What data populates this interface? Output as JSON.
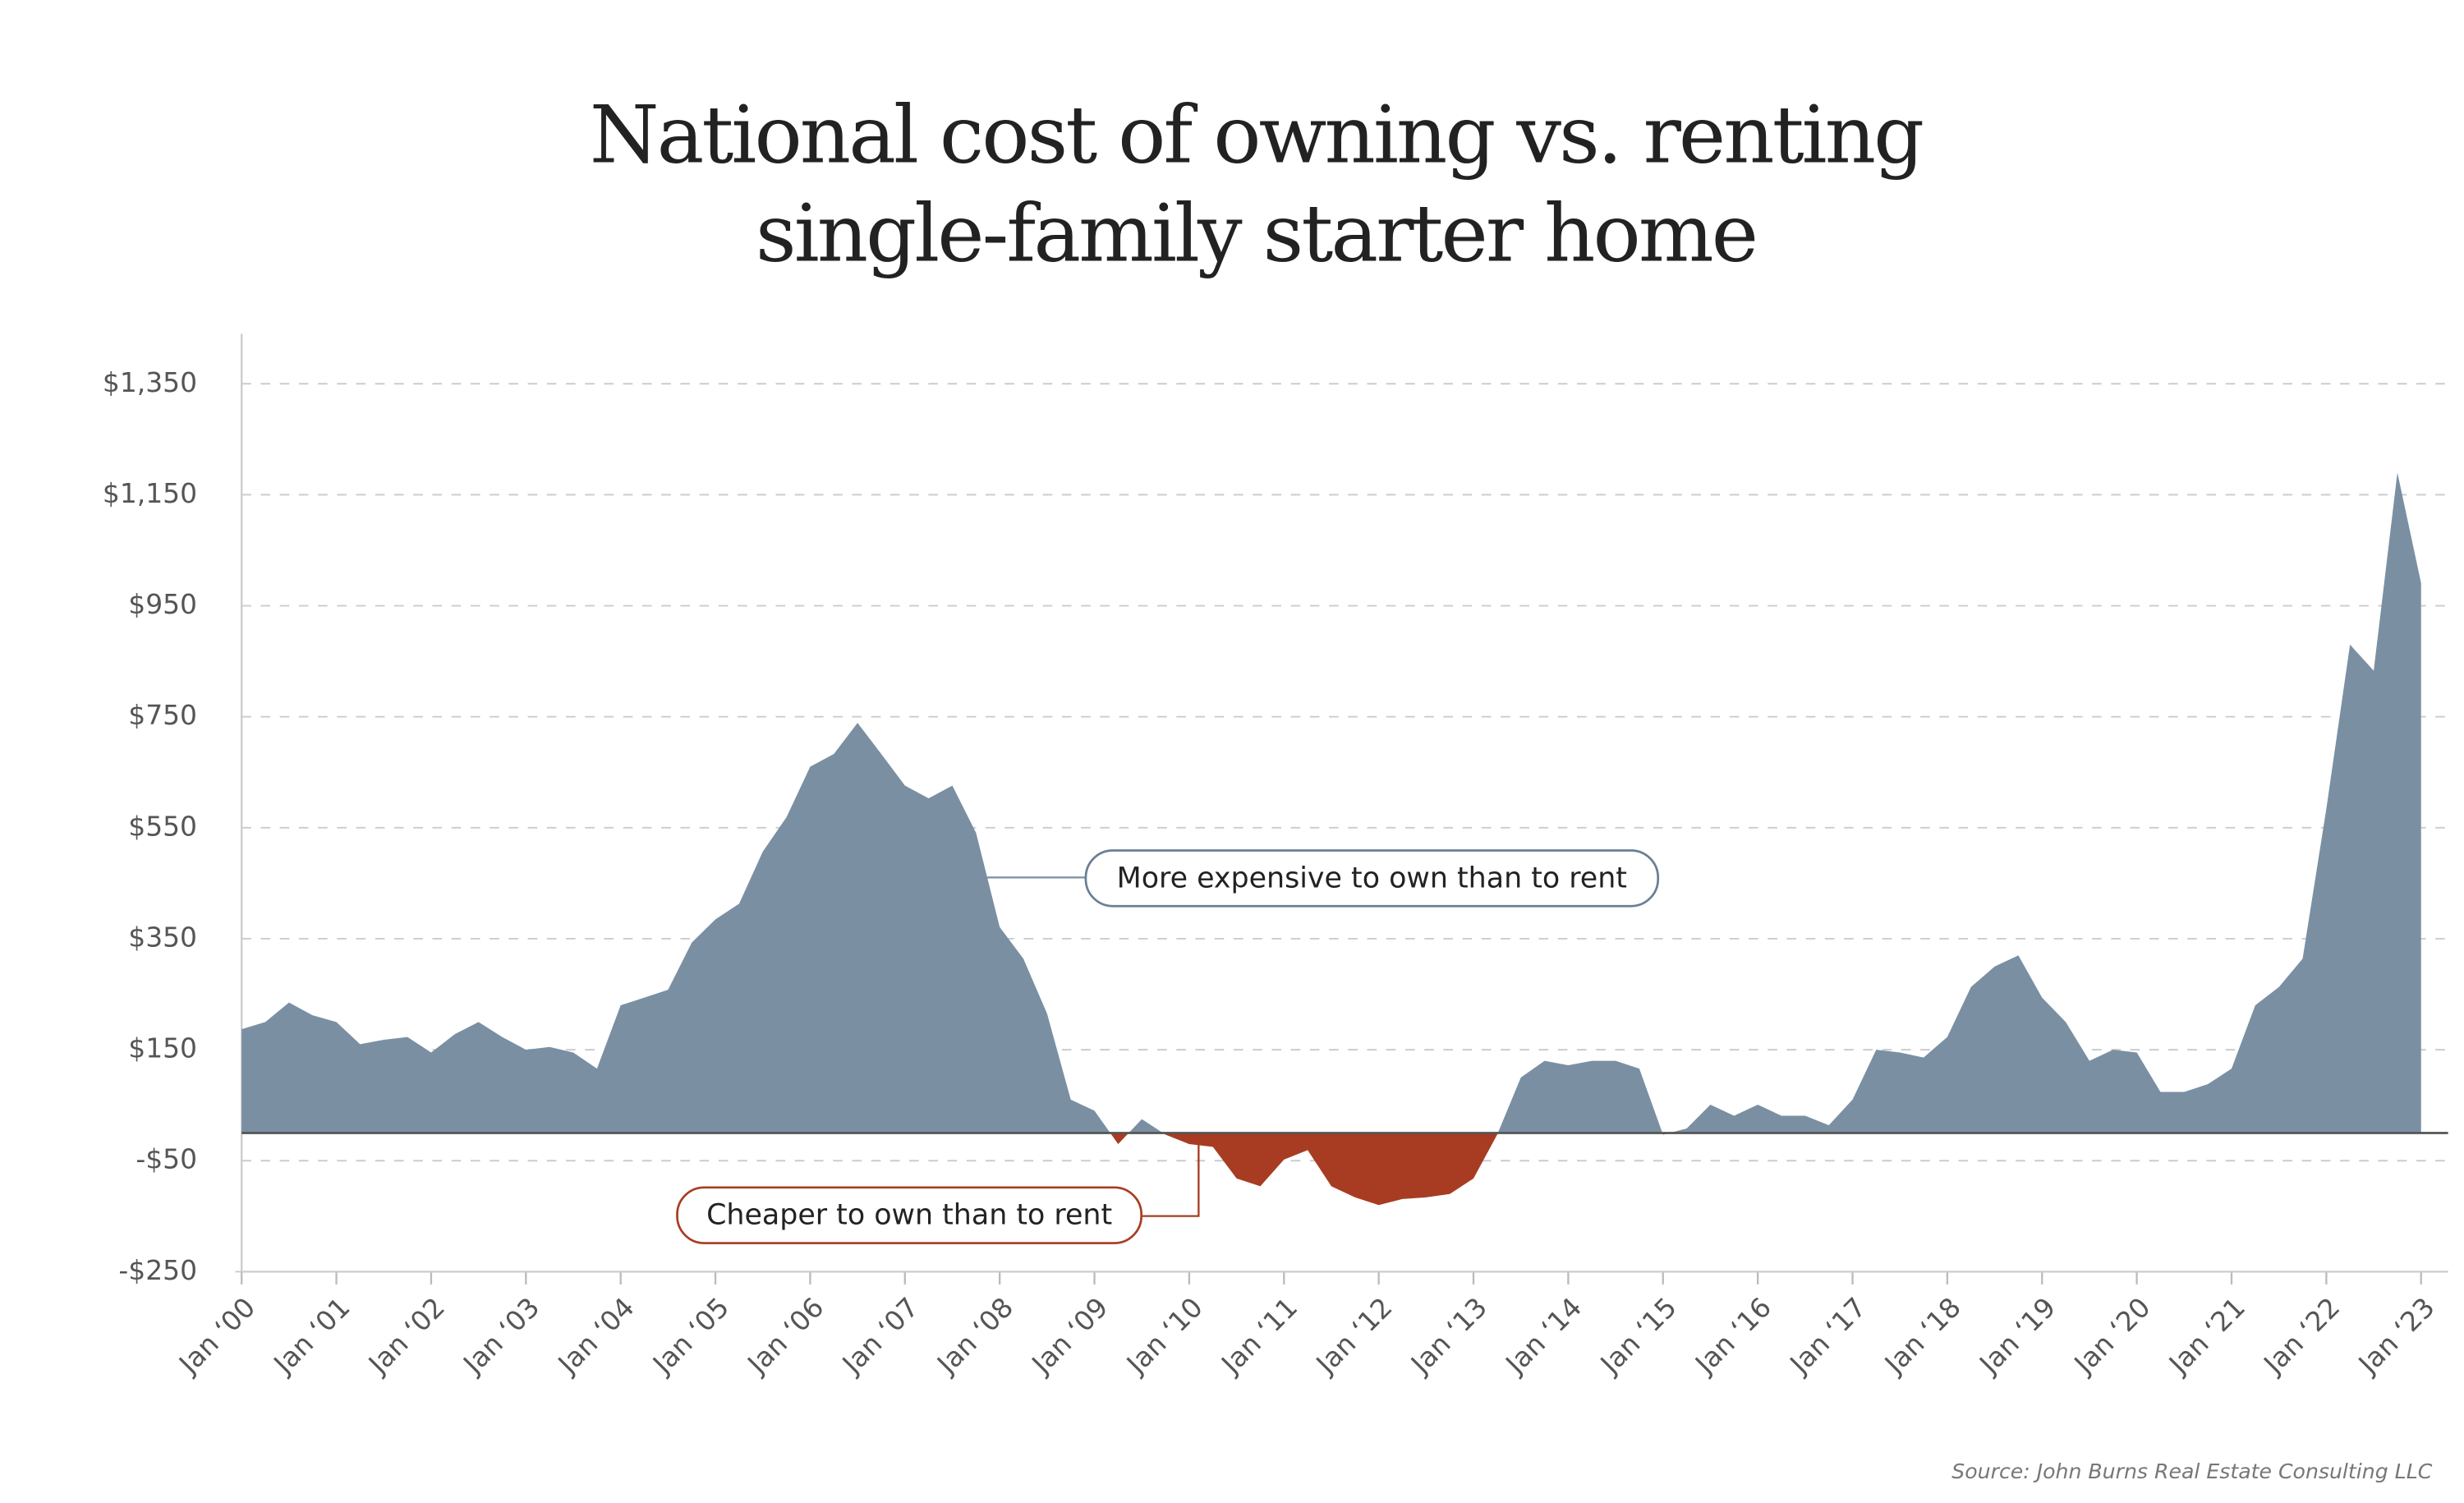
{
  "chart_data": {
    "type": "area",
    "title": [
      "National cost of owning vs. renting",
      "single-family starter home"
    ],
    "annotations": [
      "More expensive to own than to rent",
      "Cheaper to own than to rent"
    ],
    "source": "Source: John Burns Real Estate Consulting LLC",
    "x": [
      "2000-01",
      "2000-04",
      "2000-07",
      "2000-10",
      "2001-01",
      "2001-04",
      "2001-07",
      "2001-10",
      "2002-01",
      "2002-04",
      "2002-07",
      "2002-10",
      "2003-01",
      "2003-04",
      "2003-07",
      "2003-10",
      "2004-01",
      "2004-04",
      "2004-07",
      "2004-10",
      "2005-01",
      "2005-04",
      "2005-07",
      "2005-10",
      "2006-01",
      "2006-04",
      "2006-07",
      "2006-10",
      "2007-01",
      "2007-04",
      "2007-07",
      "2007-10",
      "2008-01",
      "2008-04",
      "2008-07",
      "2008-10",
      "2009-01",
      "2009-04",
      "2009-07",
      "2009-10",
      "2010-01",
      "2010-04",
      "2010-07",
      "2010-10",
      "2011-01",
      "2011-04",
      "2011-07",
      "2011-10",
      "2012-01",
      "2012-04",
      "2012-07",
      "2012-10",
      "2013-01",
      "2013-04",
      "2013-07",
      "2013-10",
      "2014-01",
      "2014-04",
      "2014-07",
      "2014-10",
      "2015-01",
      "2015-04",
      "2015-07",
      "2015-10",
      "2016-01",
      "2016-04",
      "2016-07",
      "2016-10",
      "2017-01",
      "2017-04",
      "2017-07",
      "2017-10",
      "2018-01",
      "2018-04",
      "2018-07",
      "2018-10",
      "2019-01",
      "2019-04",
      "2019-07",
      "2019-10",
      "2020-01",
      "2020-04",
      "2020-07",
      "2020-10",
      "2021-01",
      "2021-04",
      "2021-07",
      "2021-10",
      "2022-01",
      "2022-04",
      "2022-07",
      "2022-10",
      "2023-01"
    ],
    "series": [
      {
        "positive_color": "#7b8fa3",
        "negative_color": "#a83c22",
        "values": [
          187,
          200,
          235,
          212,
          200,
          160,
          168,
          173,
          145,
          178,
          200,
          173,
          150,
          155,
          145,
          116,
          230,
          244,
          258,
          343,
          385,
          413,
          507,
          569,
          660,
          683,
          739,
          683,
          626,
          603,
          626,
          541,
          371,
          314,
          215,
          60,
          40,
          -20,
          25,
          -3,
          -20,
          -25,
          -82,
          -96,
          -48,
          -31,
          -96,
          -116,
          -130,
          -119,
          -116,
          -110,
          -82,
          -3,
          100,
          130,
          122,
          130,
          130,
          116,
          -3,
          8,
          51,
          31,
          51,
          31,
          31,
          14,
          60,
          150,
          145,
          136,
          173,
          263,
          300,
          320,
          244,
          200,
          130,
          150,
          145,
          74,
          74,
          88,
          116,
          230,
          263,
          314,
          584,
          880,
          833,
          1190,
          991
        ]
      }
    ],
    "xlim": [
      "2000-01",
      "2023-01"
    ],
    "xticks": [
      {
        "value": "2000-01",
        "label": "Jan ‘00"
      },
      {
        "value": "2001-01",
        "label": "Jan ‘01"
      },
      {
        "value": "2002-01",
        "label": "Jan ‘02"
      },
      {
        "value": "2003-01",
        "label": "Jan ‘03"
      },
      {
        "value": "2004-01",
        "label": "Jan ‘04"
      },
      {
        "value": "2005-01",
        "label": "Jan ‘05"
      },
      {
        "value": "2006-01",
        "label": "Jan ‘06"
      },
      {
        "value": "2007-01",
        "label": "Jan ‘07"
      },
      {
        "value": "2008-01",
        "label": "Jan ‘08"
      },
      {
        "value": "2009-01",
        "label": "Jan ‘09"
      },
      {
        "value": "2010-01",
        "label": "Jan ‘10"
      },
      {
        "value": "2011-01",
        "label": "Jan ‘11"
      },
      {
        "value": "2012-01",
        "label": "Jan ‘12"
      },
      {
        "value": "2013-01",
        "label": "Jan ‘13"
      },
      {
        "value": "2014-01",
        "label": "Jan ‘14"
      },
      {
        "value": "2015-01",
        "label": "Jan ‘15"
      },
      {
        "value": "2016-01",
        "label": "Jan ‘16"
      },
      {
        "value": "2017-01",
        "label": "Jan ‘17"
      },
      {
        "value": "2018-01",
        "label": "Jan ‘18"
      },
      {
        "value": "2019-01",
        "label": "Jan ‘19"
      },
      {
        "value": "2020-01",
        "label": "Jan ‘20"
      },
      {
        "value": "2021-01",
        "label": "Jan ‘21"
      },
      {
        "value": "2022-01",
        "label": "Jan ‘22"
      },
      {
        "value": "2023-01",
        "label": "Jan ‘23"
      }
    ],
    "ylim": [
      -250,
      1440
    ],
    "yticks": [
      {
        "value": -250,
        "label": "-$250"
      },
      {
        "value": -50,
        "label": "-$50"
      },
      {
        "value": 150,
        "label": "$150"
      },
      {
        "value": 350,
        "label": "$350"
      },
      {
        "value": 550,
        "label": "$550"
      },
      {
        "value": 750,
        "label": "$750"
      },
      {
        "value": 950,
        "label": "$950"
      },
      {
        "value": 1150,
        "label": "$1,150"
      },
      {
        "value": 1350,
        "label": "$1,350"
      }
    ],
    "grid": true
  }
}
